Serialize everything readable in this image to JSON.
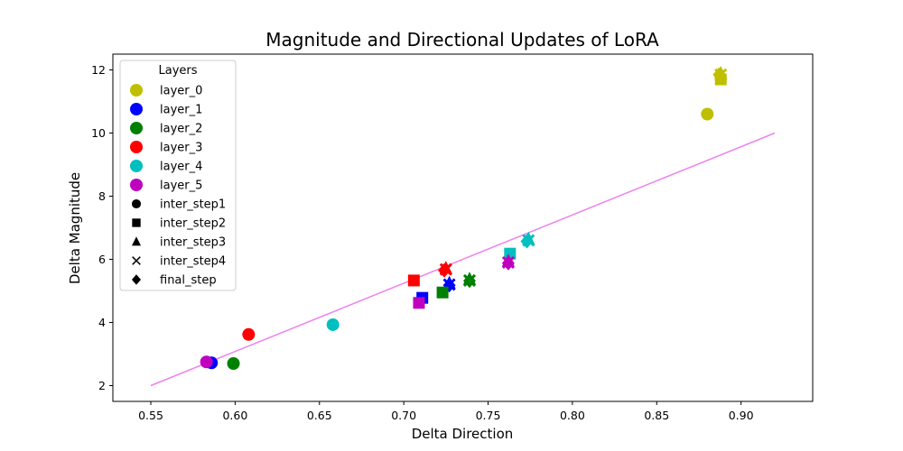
{
  "chart_data": {
    "type": "scatter",
    "title": "Magnitude and Directional Updates of LoRA",
    "xlabel": "Delta Direction",
    "ylabel": "Delta Magnitude",
    "xlim": [
      0.5275,
      0.9425
    ],
    "ylim": [
      1.5,
      12.5
    ],
    "xticks": [
      "0.55",
      "0.60",
      "0.65",
      "0.70",
      "0.75",
      "0.80",
      "0.85",
      "0.90"
    ],
    "yticks": [
      "2",
      "4",
      "6",
      "8",
      "10",
      "12"
    ],
    "grid": false,
    "legend": {
      "title": "Layers",
      "position": "upper-left",
      "layers": [
        {
          "name": "layer_0",
          "color": "#bfbf00"
        },
        {
          "name": "layer_1",
          "color": "#0000ff"
        },
        {
          "name": "layer_2",
          "color": "#008000"
        },
        {
          "name": "layer_3",
          "color": "#ff0000"
        },
        {
          "name": "layer_4",
          "color": "#00bfbf"
        },
        {
          "name": "layer_5",
          "color": "#bf00bf"
        }
      ],
      "steps": [
        {
          "name": "inter_step1",
          "marker": "circle"
        },
        {
          "name": "inter_step2",
          "marker": "square"
        },
        {
          "name": "inter_step3",
          "marker": "triangle"
        },
        {
          "name": "inter_step4",
          "marker": "x"
        },
        {
          "name": "final_step",
          "marker": "diamond"
        }
      ]
    },
    "trend_line": {
      "color": "#ee82ee",
      "x": [
        0.55,
        0.92
      ],
      "y": [
        2.0,
        10.0
      ]
    },
    "series": [
      {
        "name": "layer_0",
        "color": "#bfbf00",
        "points": [
          {
            "step": "inter_step1",
            "x": 0.88,
            "y": 10.6
          },
          {
            "step": "inter_step2",
            "x": 0.888,
            "y": 11.7
          },
          {
            "step": "inter_step3",
            "x": 0.888,
            "y": 11.9
          },
          {
            "step": "inter_step4",
            "x": 0.888,
            "y": 11.85
          },
          {
            "step": "final_step",
            "x": 0.887,
            "y": 11.85
          }
        ]
      },
      {
        "name": "layer_1",
        "color": "#0000ff",
        "points": [
          {
            "step": "inter_step1",
            "x": 0.586,
            "y": 2.72
          },
          {
            "step": "inter_step2",
            "x": 0.711,
            "y": 4.78
          },
          {
            "step": "inter_step3",
            "x": 0.727,
            "y": 5.25
          },
          {
            "step": "inter_step4",
            "x": 0.727,
            "y": 5.2
          },
          {
            "step": "final_step",
            "x": 0.727,
            "y": 5.18
          }
        ]
      },
      {
        "name": "layer_2",
        "color": "#008000",
        "points": [
          {
            "step": "inter_step1",
            "x": 0.599,
            "y": 2.7
          },
          {
            "step": "inter_step2",
            "x": 0.723,
            "y": 4.95
          },
          {
            "step": "inter_step3",
            "x": 0.739,
            "y": 5.38
          },
          {
            "step": "inter_step4",
            "x": 0.739,
            "y": 5.33
          },
          {
            "step": "final_step",
            "x": 0.739,
            "y": 5.32
          }
        ]
      },
      {
        "name": "layer_3",
        "color": "#ff0000",
        "points": [
          {
            "step": "inter_step1",
            "x": 0.608,
            "y": 3.62
          },
          {
            "step": "inter_step2",
            "x": 0.706,
            "y": 5.33
          },
          {
            "step": "inter_step3",
            "x": 0.725,
            "y": 5.72
          },
          {
            "step": "inter_step4",
            "x": 0.725,
            "y": 5.68
          },
          {
            "step": "final_step",
            "x": 0.724,
            "y": 5.65
          }
        ]
      },
      {
        "name": "layer_4",
        "color": "#00bfbf",
        "points": [
          {
            "step": "inter_step1",
            "x": 0.658,
            "y": 3.93
          },
          {
            "step": "inter_step2",
            "x": 0.763,
            "y": 6.18
          },
          {
            "step": "inter_step3",
            "x": 0.774,
            "y": 6.65
          },
          {
            "step": "inter_step4",
            "x": 0.774,
            "y": 6.6
          },
          {
            "step": "final_step",
            "x": 0.773,
            "y": 6.57
          }
        ]
      },
      {
        "name": "layer_5",
        "color": "#bf00bf",
        "points": [
          {
            "step": "inter_step1",
            "x": 0.583,
            "y": 2.75
          },
          {
            "step": "inter_step2",
            "x": 0.709,
            "y": 4.62
          },
          {
            "step": "inter_step3",
            "x": 0.762,
            "y": 5.95
          },
          {
            "step": "inter_step4",
            "x": 0.762,
            "y": 5.9
          },
          {
            "step": "final_step",
            "x": 0.762,
            "y": 5.88
          }
        ]
      }
    ]
  }
}
